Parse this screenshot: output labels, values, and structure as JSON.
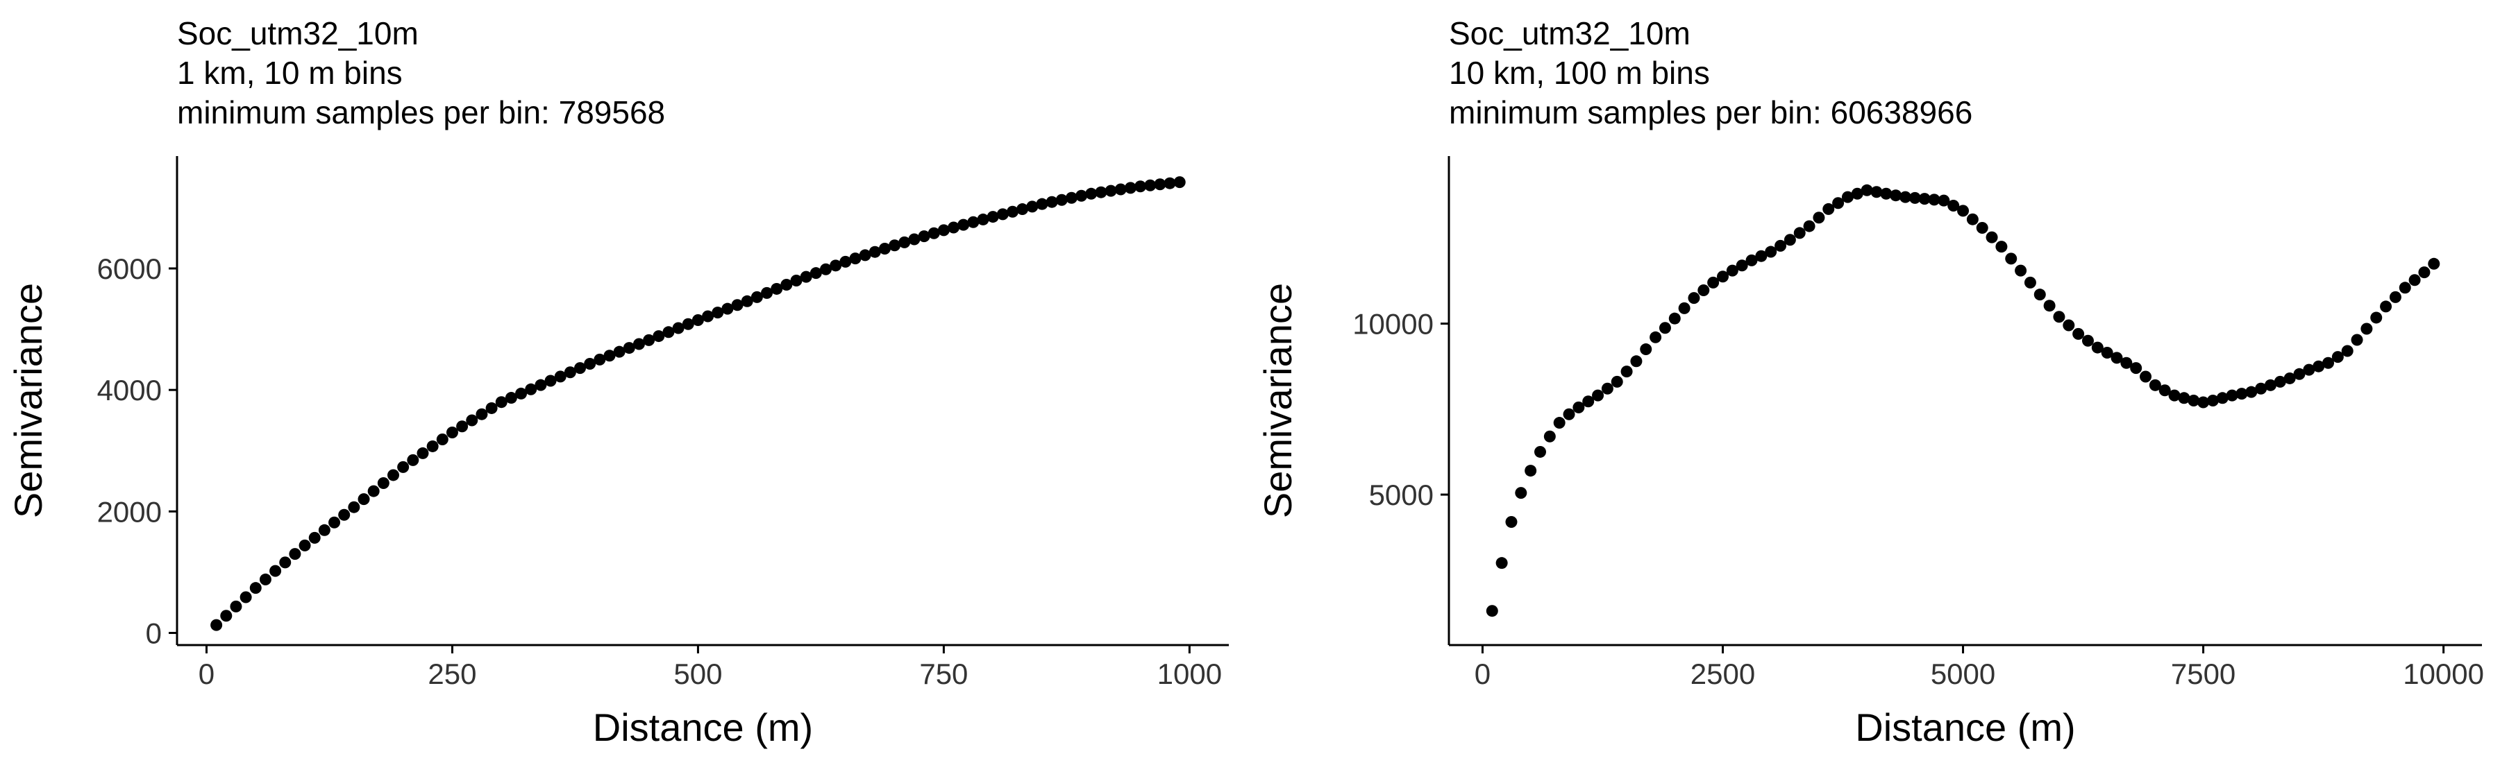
{
  "chart_data": [
    {
      "type": "scatter",
      "title": "Soc_utm32_10m",
      "subtitle_lines": [
        "1 km, 10 m bins",
        "minimum samples per bin: 789568"
      ],
      "xlabel": "Distance (m)",
      "ylabel": "Semivariance",
      "xlim": [
        -30,
        1040
      ],
      "ylim": [
        -200,
        7850
      ],
      "xticks": [
        0,
        250,
        500,
        750,
        1000
      ],
      "yticks": [
        0,
        2000,
        4000,
        6000
      ],
      "x_tick_labels": [
        "0",
        "250",
        "500",
        "750",
        "1000"
      ],
      "y_tick_labels": [
        "0",
        "2000",
        "4000",
        "6000"
      ],
      "grid": false,
      "marker_color": "#000000",
      "x_start": 10,
      "x_step": 10,
      "x_end": 990,
      "y_anchors": [
        [
          10,
          130
        ],
        [
          50,
          740
        ],
        [
          100,
          1440
        ],
        [
          150,
          2070
        ],
        [
          200,
          2730
        ],
        [
          250,
          3300
        ],
        [
          300,
          3800
        ],
        [
          350,
          4150
        ],
        [
          400,
          4500
        ],
        [
          450,
          4820
        ],
        [
          500,
          5150
        ],
        [
          550,
          5460
        ],
        [
          600,
          5800
        ],
        [
          650,
          6110
        ],
        [
          700,
          6380
        ],
        [
          750,
          6630
        ],
        [
          800,
          6850
        ],
        [
          850,
          7060
        ],
        [
          900,
          7230
        ],
        [
          950,
          7350
        ],
        [
          990,
          7420
        ]
      ]
    },
    {
      "type": "scatter",
      "title": "Soc_utm32_10m",
      "subtitle_lines": [
        "10 km, 100 m bins",
        "minimum samples per bin: 60638966"
      ],
      "xlabel": "Distance (m)",
      "ylabel": "Semivariance",
      "xlim": [
        -350,
        10400
      ],
      "ylim": [
        600,
        14900
      ],
      "xticks": [
        0,
        2500,
        5000,
        7500,
        10000
      ],
      "yticks": [
        5000,
        10000
      ],
      "x_tick_labels": [
        "0",
        "2500",
        "5000",
        "7500",
        "10000"
      ],
      "y_tick_labels": [
        "5000",
        "10000"
      ],
      "grid": false,
      "marker_color": "#000000",
      "x_start": 100,
      "x_step": 100,
      "x_end": 9900,
      "y_anchors": [
        [
          100,
          1600
        ],
        [
          200,
          3000
        ],
        [
          300,
          4200
        ],
        [
          400,
          5050
        ],
        [
          500,
          5700
        ],
        [
          600,
          6250
        ],
        [
          700,
          6700
        ],
        [
          800,
          7100
        ],
        [
          900,
          7350
        ],
        [
          1000,
          7550
        ],
        [
          1200,
          7900
        ],
        [
          1400,
          8300
        ],
        [
          1600,
          8900
        ],
        [
          1800,
          9600
        ],
        [
          2000,
          10150
        ],
        [
          2200,
          10750
        ],
        [
          2400,
          11200
        ],
        [
          2600,
          11550
        ],
        [
          2800,
          11850
        ],
        [
          3000,
          12100
        ],
        [
          3200,
          12450
        ],
        [
          3400,
          12850
        ],
        [
          3600,
          13350
        ],
        [
          3800,
          13700
        ],
        [
          4000,
          13900
        ],
        [
          4200,
          13800
        ],
        [
          4400,
          13700
        ],
        [
          4600,
          13650
        ],
        [
          4800,
          13600
        ],
        [
          5000,
          13300
        ],
        [
          5200,
          12800
        ],
        [
          5400,
          12250
        ],
        [
          5600,
          11550
        ],
        [
          5800,
          10850
        ],
        [
          6000,
          10200
        ],
        [
          6200,
          9700
        ],
        [
          6400,
          9300
        ],
        [
          6600,
          9000
        ],
        [
          6800,
          8700
        ],
        [
          7000,
          8200
        ],
        [
          7200,
          7900
        ],
        [
          7400,
          7750
        ],
        [
          7500,
          7700
        ],
        [
          7600,
          7750
        ],
        [
          7800,
          7900
        ],
        [
          8000,
          8000
        ],
        [
          8200,
          8200
        ],
        [
          8400,
          8400
        ],
        [
          8600,
          8650
        ],
        [
          8800,
          8850
        ],
        [
          9000,
          9200
        ],
        [
          9200,
          9850
        ],
        [
          9400,
          10500
        ],
        [
          9600,
          11050
        ],
        [
          9800,
          11500
        ],
        [
          9900,
          11750
        ]
      ]
    }
  ]
}
